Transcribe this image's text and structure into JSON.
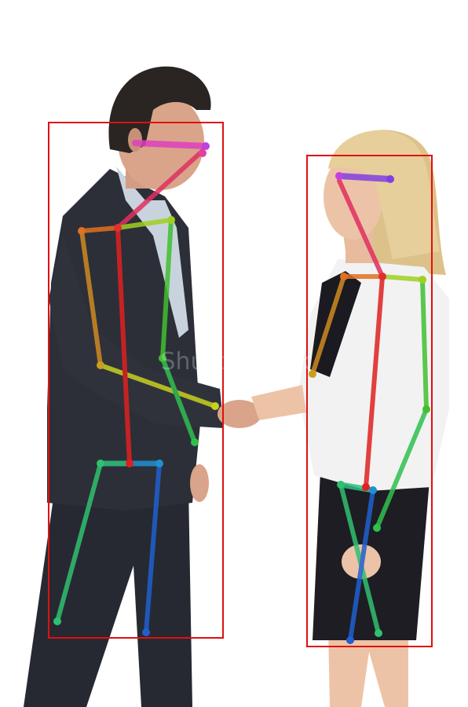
{
  "scene": {
    "background": "#ffffff",
    "watermark_text": "Shutterstock",
    "people": [
      {
        "name": "man-in-dark-suit",
        "suit": "#2c2f38",
        "shirt": "#c9d3dd",
        "hair": "#2a2522",
        "skin": "#d9a48a"
      },
      {
        "name": "woman-in-white-blazer",
        "blazer": "#f2f2f2",
        "skirt": "#1d1d23",
        "hair": "#e6cf9a",
        "skin": "#edc3a7"
      }
    ]
  },
  "annotations": {
    "box_color": "#e01010",
    "limb_colors": {
      "head": "#e040c0",
      "neck": "#e03060",
      "shoulders": "#e07020",
      "right_arm": "#d08a20",
      "left_arm": "#40c030",
      "torso_right": "#e02020",
      "torso_left": "#20c040",
      "hips": "#2090d0",
      "right_leg": "#30c070",
      "left_leg": "#2060d0"
    }
  }
}
